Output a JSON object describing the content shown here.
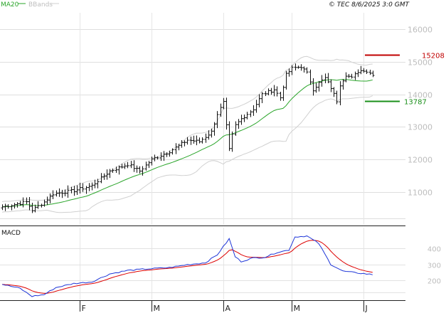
{
  "header": {
    "legend": [
      {
        "label": "MA20",
        "color": "#2aa52a"
      },
      {
        "label": "BBands",
        "color": "#bdbdbd"
      }
    ],
    "copyright": "© TEC 8/6/2025 3:0 GMT"
  },
  "chart_data": [
    {
      "type": "line",
      "title": "",
      "price_axis": {
        "range": [
          10000,
          16500
        ],
        "ticks": [
          11000,
          12000,
          13000,
          14000,
          15000,
          16000
        ],
        "tick_labels": [
          "11000",
          "12000",
          "13000",
          "14000",
          "15000",
          "16000"
        ]
      },
      "x_axis": {
        "months": [
          {
            "label": "F",
            "index": 26
          },
          {
            "label": "M",
            "index": 50
          },
          {
            "label": "A",
            "index": 74
          },
          {
            "label": "M",
            "index": 97
          },
          {
            "label": "J",
            "index": 121
          }
        ],
        "bars_count": 125
      },
      "levels": [
        {
          "label": "15208",
          "value": 15208,
          "color": "#c00000"
        },
        {
          "label": "13787",
          "value": 13787,
          "color": "#1a8f1a"
        }
      ],
      "keyframes": [
        [
          0,
          10550
        ],
        [
          8,
          10700
        ],
        [
          10,
          10450
        ],
        [
          14,
          10700
        ],
        [
          17,
          10950
        ],
        [
          24,
          11050
        ],
        [
          30,
          11200
        ],
        [
          36,
          11650
        ],
        [
          42,
          11850
        ],
        [
          46,
          11650
        ],
        [
          50,
          12000
        ],
        [
          56,
          12250
        ],
        [
          62,
          12600
        ],
        [
          66,
          12550
        ],
        [
          70,
          12850
        ],
        [
          72,
          13400
        ],
        [
          74,
          13750
        ],
        [
          76,
          12300
        ],
        [
          77,
          12750
        ],
        [
          78,
          13050
        ],
        [
          80,
          13250
        ],
        [
          84,
          13550
        ],
        [
          87,
          14000
        ],
        [
          91,
          14150
        ],
        [
          93,
          13900
        ],
        [
          95,
          14600
        ],
        [
          97,
          14800
        ],
        [
          100,
          14850
        ],
        [
          102,
          14650
        ],
        [
          104,
          14150
        ],
        [
          106,
          14350
        ],
        [
          108,
          14500
        ],
        [
          110,
          14200
        ],
        [
          112,
          13800
        ],
        [
          113,
          14300
        ],
        [
          115,
          14600
        ],
        [
          117,
          14500
        ],
        [
          119,
          14700
        ],
        [
          121,
          14750
        ],
        [
          123,
          14650
        ],
        [
          124,
          14620
        ]
      ],
      "grid": true,
      "indicators": [
        "MA20",
        "BBands"
      ]
    },
    {
      "type": "line",
      "title": "MACD",
      "y_axis": {
        "ticks": [
          200,
          300,
          400
        ],
        "tick_labels": [
          "200",
          "300",
          "400"
        ]
      },
      "macd_keyframes": [
        [
          0,
          175
        ],
        [
          6,
          150
        ],
        [
          10,
          100
        ],
        [
          14,
          110
        ],
        [
          18,
          155
        ],
        [
          24,
          180
        ],
        [
          30,
          190
        ],
        [
          36,
          240
        ],
        [
          42,
          262
        ],
        [
          50,
          273
        ],
        [
          56,
          280
        ],
        [
          62,
          298
        ],
        [
          68,
          310
        ],
        [
          72,
          360
        ],
        [
          76,
          460
        ],
        [
          78,
          348
        ],
        [
          80,
          318
        ],
        [
          84,
          340
        ],
        [
          88,
          345
        ],
        [
          92,
          375
        ],
        [
          96,
          390
        ],
        [
          98,
          472
        ],
        [
          102,
          478
        ],
        [
          106,
          430
        ],
        [
          110,
          300
        ],
        [
          114,
          258
        ],
        [
          118,
          248
        ],
        [
          122,
          240
        ],
        [
          124,
          236
        ]
      ],
      "grid": true,
      "series": []
    }
  ]
}
